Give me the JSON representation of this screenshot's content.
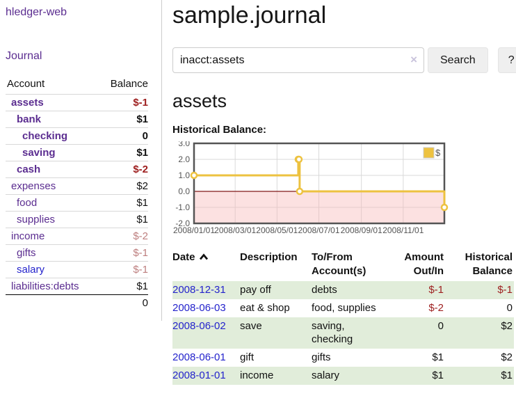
{
  "colors": {
    "purple": "#5b2d90",
    "blue": "#2423cc",
    "neg-strong": "#9e2020",
    "neg-muted": "#bd7e7e",
    "row-green": "#e1edda",
    "clear-x": "#c9c3dc"
  },
  "app": {
    "brand": "hledger-web"
  },
  "sidebar": {
    "nav": {
      "journal": "Journal"
    },
    "table": {
      "headers": [
        "Account",
        "Balance"
      ],
      "accounts": [
        {
          "name": "assets",
          "depth": 0,
          "bold": true,
          "balance": "$-1",
          "balance_style": "neg"
        },
        {
          "name": "bank",
          "depth": 1,
          "bold": true,
          "balance": "$1",
          "balance_style": "pos"
        },
        {
          "name": "checking",
          "depth": 2,
          "bold": true,
          "balance": "0",
          "balance_style": "pos"
        },
        {
          "name": "saving",
          "depth": 2,
          "bold": true,
          "balance": "$1",
          "balance_style": "pos"
        },
        {
          "name": "cash",
          "depth": 1,
          "bold": true,
          "balance": "$-2",
          "balance_style": "neg"
        },
        {
          "name": "expenses",
          "depth": 0,
          "bold": false,
          "balance": "$2",
          "balance_style": "pos"
        },
        {
          "name": "food",
          "depth": 1,
          "bold": false,
          "balance": "$1",
          "balance_style": "pos"
        },
        {
          "name": "supplies",
          "depth": 1,
          "bold": false,
          "balance": "$1",
          "balance_style": "pos"
        },
        {
          "name": "income",
          "depth": 0,
          "bold": false,
          "balance": "$-2",
          "balance_style": "neg-muted"
        },
        {
          "name": "gifts",
          "depth": 1,
          "bold": false,
          "balance": "$-1",
          "balance_style": "neg-muted"
        },
        {
          "name": "salary",
          "depth": 1,
          "bold": false,
          "link_style": "blue",
          "balance": "$-1",
          "balance_style": "neg-muted"
        },
        {
          "name": "liabilities:debts",
          "depth": 0,
          "bold": false,
          "balance": "$1",
          "balance_style": "pos"
        }
      ],
      "total": "0"
    }
  },
  "main": {
    "title": "sample.journal",
    "search": {
      "value": "inacct:assets",
      "clear_icon": "×",
      "button": "Search",
      "help_button": "?"
    },
    "account_heading": "assets",
    "chart_heading": "Historical Balance:"
  },
  "chart_data": {
    "type": "line",
    "style": "step",
    "title": "Historical Balance",
    "series": [
      {
        "name": "$",
        "color": "#edc240",
        "points": [
          [
            "2008-01-01",
            1.0
          ],
          [
            "2008-06-01",
            2.0
          ],
          [
            "2008-06-02",
            2.0
          ],
          [
            "2008-06-03",
            0.0
          ],
          [
            "2008-12-31",
            -1.0
          ]
        ]
      }
    ],
    "x_range": [
      "2008-01-01",
      "2008-12-31"
    ],
    "x_ticks": [
      {
        "date": "2008-01-01",
        "label": "2008/01/01"
      },
      {
        "date": "2008-03-01",
        "label": "2008/03/01"
      },
      {
        "date": "2008-05-01",
        "label": "2008/05/01"
      },
      {
        "date": "2008-07-01",
        "label": "2008/07/01"
      },
      {
        "date": "2008-09-01",
        "label": "2008/09/01"
      },
      {
        "date": "2008-11-01",
        "label": "2008/11/01"
      }
    ],
    "y_ticks": [
      "3.0",
      "2.0",
      "1.0",
      "0.0",
      "-1.0",
      "-2.0"
    ],
    "ylim": [
      -2,
      3
    ],
    "grid": true,
    "legend": {
      "label": "$",
      "position": "top-right"
    },
    "frame_color": "#545454",
    "grid_color": "#d9d9d9",
    "zero_line_color": "#801717",
    "negative_fill": "rgba(248,180,180,0.40)",
    "tick_text_color": "#545454"
  },
  "register": {
    "headers": [
      {
        "line1": "Date"
      },
      {
        "line1": "Description"
      },
      {
        "line1": "To/From",
        "line2": "Account(s)"
      },
      {
        "line1": "Amount",
        "line2": "Out/In"
      },
      {
        "line1": "Historical",
        "line2": "Balance"
      }
    ],
    "sort_icon": "chevron-up",
    "rows": [
      {
        "date": "2008-12-31",
        "description": "pay off",
        "accounts": "debts",
        "amount": "$-1",
        "amount_neg": true,
        "balance": "$-1",
        "balance_neg": true
      },
      {
        "date": "2008-06-03",
        "description": "eat & shop",
        "accounts": "food, supplies",
        "amount": "$-2",
        "amount_neg": true,
        "balance": "0",
        "balance_neg": false
      },
      {
        "date": "2008-06-02",
        "description": "save",
        "accounts": "saving, checking",
        "amount": "0",
        "amount_neg": false,
        "balance": "$2",
        "balance_neg": false
      },
      {
        "date": "2008-06-01",
        "description": "gift",
        "accounts": "gifts",
        "amount": "$1",
        "amount_neg": false,
        "balance": "$2",
        "balance_neg": false
      },
      {
        "date": "2008-01-01",
        "description": "income",
        "accounts": "salary",
        "amount": "$1",
        "amount_neg": false,
        "balance": "$1",
        "balance_neg": false
      }
    ]
  }
}
